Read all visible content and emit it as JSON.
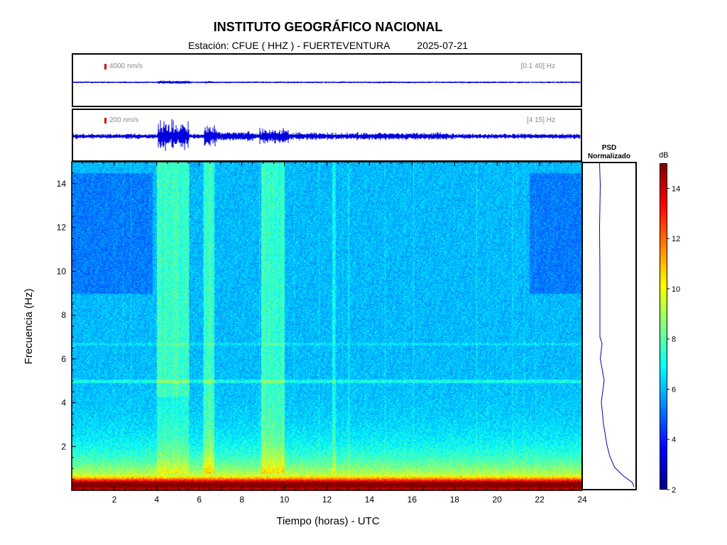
{
  "header": {
    "title": "INSTITUTO GEOGRÁFICO NACIONAL",
    "station": "Estación:  CFUE ( HHZ ) - FUERTEVENTURA",
    "date": "2025-07-21"
  },
  "waveforms": [
    {
      "scale_label": "4000 nm/s",
      "band_label": "[0.1 40] Hz"
    },
    {
      "scale_label": "200 nm/s",
      "band_label": "[4 15] Hz"
    }
  ],
  "psd": {
    "title_line1": "PSD",
    "title_line2": "Normalizado"
  },
  "colorbar": {
    "unit": "dB",
    "range": [
      2,
      15
    ],
    "ticks": [
      "2",
      "4",
      "6",
      "8",
      "10",
      "12",
      "14"
    ],
    "colormap": "jet"
  },
  "chart_data": {
    "type": "heatmap",
    "title": "INSTITUTO GEOGRÁFICO NACIONAL",
    "xlabel": "Tiempo (horas) - UTC",
    "ylabel": "Frecuencia  (Hz)",
    "xlim": [
      0,
      24
    ],
    "ylim": [
      0,
      15
    ],
    "x_ticks": [
      "2",
      "4",
      "6",
      "8",
      "10",
      "12",
      "14",
      "16",
      "18",
      "20",
      "22",
      "24"
    ],
    "y_ticks": [
      "2",
      "4",
      "6",
      "8",
      "10",
      "12",
      "14"
    ],
    "colorbar_unit": "dB",
    "color_range": [
      2,
      15
    ],
    "energy_bursts_hours": [
      [
        4.0,
        5.5
      ],
      [
        6.2,
        6.7
      ],
      [
        8.9,
        10.0
      ]
    ],
    "spectral_lines_hz": [
      0.3,
      5.0,
      6.7
    ],
    "psd_normalized": {
      "freq_hz": [
        0.1,
        0.3,
        0.6,
        1,
        1.5,
        2,
        3,
        4,
        5,
        6,
        6.7,
        7,
        8,
        10,
        12,
        14,
        15
      ],
      "value": [
        1.0,
        0.95,
        0.7,
        0.45,
        0.32,
        0.24,
        0.14,
        0.08,
        0.16,
        0.05,
        0.1,
        0.04,
        0.04,
        0.04,
        0.03,
        0.05,
        0.03
      ]
    }
  }
}
